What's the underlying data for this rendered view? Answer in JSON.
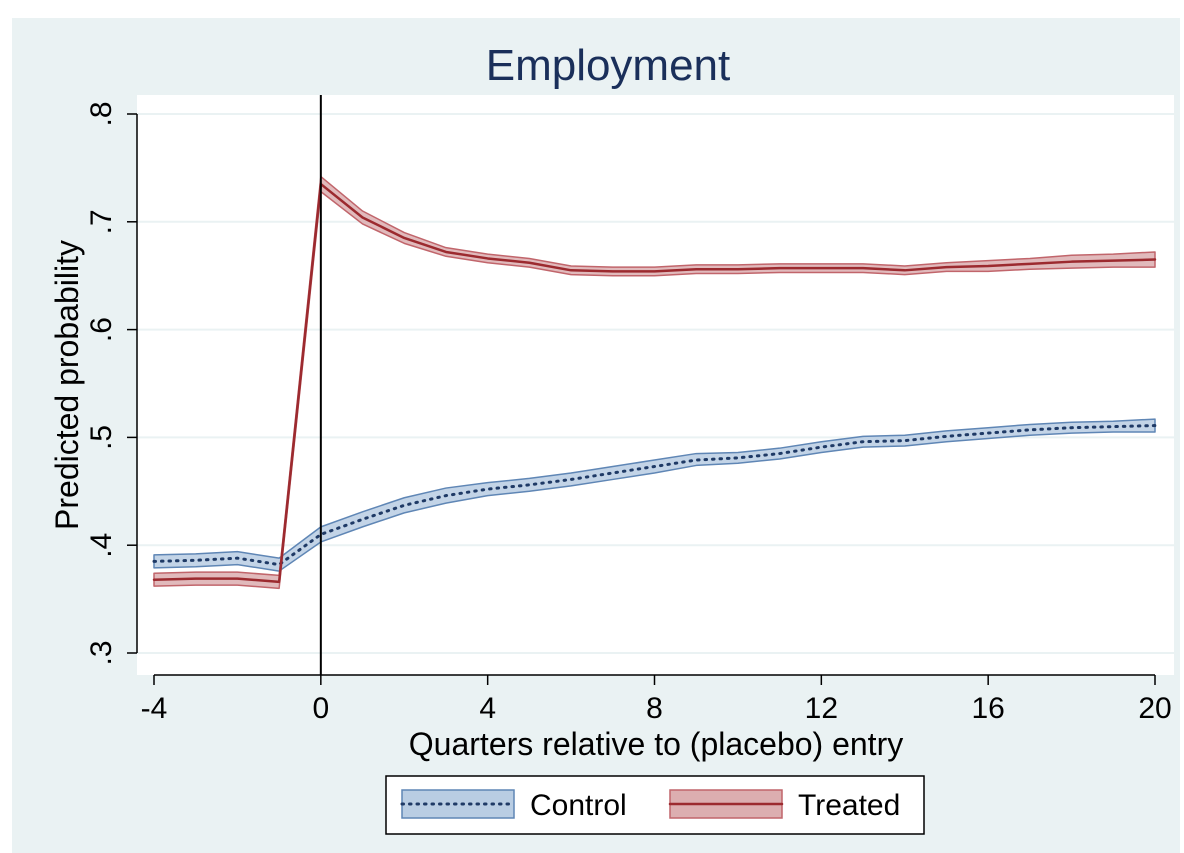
{
  "chart_data": {
    "type": "line",
    "title": "Employment",
    "xlabel": "Quarters relative to (placebo) entry",
    "ylabel": "Predicted probability",
    "xlim": [
      -4,
      20
    ],
    "ylim": [
      0.3,
      0.8
    ],
    "x_ticks": [
      -4,
      0,
      4,
      8,
      12,
      16,
      20
    ],
    "x_tick_labels": [
      "-4",
      "0",
      "4",
      "8",
      "12",
      "16",
      "20"
    ],
    "y_ticks": [
      0.3,
      0.4,
      0.5,
      0.6,
      0.7,
      0.8
    ],
    "y_tick_labels": [
      ".3",
      ".4",
      ".5",
      ".6",
      ".7",
      ".8"
    ],
    "grid": true,
    "vertical_reference_line_x": 0,
    "legend_position": "bottom",
    "x": [
      -4,
      -3,
      -2,
      -1,
      0,
      1,
      2,
      3,
      4,
      5,
      6,
      7,
      8,
      9,
      10,
      11,
      12,
      13,
      14,
      15,
      16,
      17,
      18,
      19,
      20
    ],
    "series": [
      {
        "name": "Control",
        "style": "dotted",
        "color": "#1f3a66",
        "band_fill": "#b9cde3",
        "band_edge": "#5f86b5",
        "values": [
          0.385,
          0.386,
          0.388,
          0.382,
          0.41,
          0.424,
          0.437,
          0.446,
          0.452,
          0.456,
          0.461,
          0.467,
          0.473,
          0.479,
          0.481,
          0.485,
          0.491,
          0.496,
          0.497,
          0.501,
          0.504,
          0.507,
          0.509,
          0.51,
          0.511
        ],
        "lower": [
          0.379,
          0.38,
          0.382,
          0.376,
          0.403,
          0.417,
          0.43,
          0.439,
          0.446,
          0.45,
          0.455,
          0.461,
          0.467,
          0.474,
          0.476,
          0.48,
          0.486,
          0.491,
          0.492,
          0.496,
          0.499,
          0.502,
          0.504,
          0.505,
          0.505
        ],
        "upper": [
          0.391,
          0.392,
          0.394,
          0.388,
          0.417,
          0.431,
          0.444,
          0.453,
          0.458,
          0.462,
          0.467,
          0.473,
          0.479,
          0.485,
          0.486,
          0.49,
          0.496,
          0.501,
          0.502,
          0.506,
          0.509,
          0.512,
          0.514,
          0.515,
          0.517
        ]
      },
      {
        "name": "Treated",
        "style": "solid",
        "color": "#9c2a2f",
        "band_fill": "#dcaeb0",
        "band_edge": "#c1656b",
        "values": [
          0.368,
          0.369,
          0.369,
          0.366,
          0.735,
          0.704,
          0.685,
          0.672,
          0.666,
          0.662,
          0.655,
          0.654,
          0.654,
          0.656,
          0.656,
          0.657,
          0.657,
          0.657,
          0.655,
          0.658,
          0.659,
          0.661,
          0.663,
          0.664,
          0.665
        ],
        "lower": [
          0.362,
          0.363,
          0.363,
          0.36,
          0.728,
          0.698,
          0.68,
          0.668,
          0.662,
          0.658,
          0.651,
          0.65,
          0.65,
          0.652,
          0.652,
          0.653,
          0.653,
          0.653,
          0.651,
          0.654,
          0.654,
          0.656,
          0.657,
          0.658,
          0.658
        ],
        "upper": [
          0.374,
          0.375,
          0.375,
          0.372,
          0.742,
          0.71,
          0.69,
          0.676,
          0.67,
          0.666,
          0.659,
          0.658,
          0.658,
          0.66,
          0.66,
          0.661,
          0.661,
          0.661,
          0.659,
          0.662,
          0.664,
          0.666,
          0.669,
          0.67,
          0.672
        ]
      }
    ]
  },
  "colors": {
    "outer_background": "#eaf2f3",
    "plot_background": "#ffffff",
    "grid": "#eaf2f3",
    "axis": "#000000",
    "title": "#1a2f5a"
  }
}
